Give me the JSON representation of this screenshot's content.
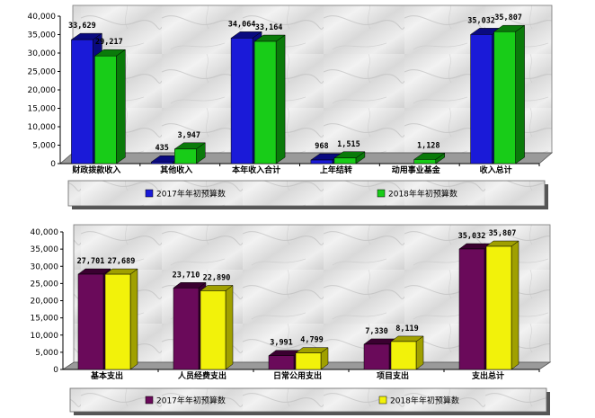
{
  "colors": {
    "blue": "#1a1ad8",
    "blue_dark": "#0a0a80",
    "green": "#18cc18",
    "green_dark": "#0a7a0a",
    "purple": "#6a0a5a",
    "purple_dark": "#3a0030",
    "yellow": "#f2f20a",
    "yellow_dark": "#a0a000"
  },
  "chart_data": [
    {
      "type": "bar",
      "title": "",
      "categories": [
        "财政拨款收入",
        "其他收入",
        "本年收入合计",
        "上年结转",
        "动用事业基金",
        "收入总计"
      ],
      "series": [
        {
          "name": "2017年年初预算数",
          "color": "blue",
          "values": [
            33629,
            435,
            34064,
            968,
            null,
            35032
          ],
          "labels": [
            "33,629",
            "435",
            "34,064",
            "968",
            "",
            "35,032"
          ]
        },
        {
          "name": "2018年年初预算数",
          "color": "green",
          "values": [
            29217,
            3947,
            33164,
            1515,
            1128,
            35807
          ],
          "labels": [
            "29,217",
            "3,947",
            "33,164",
            "1,515",
            "1,128",
            "35,807"
          ]
        }
      ],
      "ylim": [
        0,
        40000
      ],
      "yticks": [
        "0",
        "5,000",
        "10,000",
        "15,000",
        "20,000",
        "25,000",
        "30,000",
        "35,000",
        "40,000"
      ],
      "legend_position": "bottom",
      "grid": false
    },
    {
      "type": "bar",
      "title": "",
      "categories": [
        "基本支出",
        "人员经费支出",
        "日常公用支出",
        "项目支出",
        "支出总计"
      ],
      "series": [
        {
          "name": "2017年年初预算数",
          "color": "purple",
          "values": [
            27701,
            23710,
            3991,
            7330,
            35032
          ],
          "labels": [
            "27,701",
            "23,710",
            "3,991",
            "7,330",
            "35,032"
          ]
        },
        {
          "name": "2018年年初预算数",
          "color": "yellow",
          "values": [
            27689,
            22890,
            4799,
            8119,
            35807
          ],
          "labels": [
            "27,689",
            "22,890",
            "4,799",
            "8,119",
            "35,807"
          ]
        }
      ],
      "ylim": [
        0,
        40000
      ],
      "yticks": [
        "0",
        "5,000",
        "10,000",
        "15,000",
        "20,000",
        "25,000",
        "30,000",
        "35,000",
        "40,000"
      ],
      "legend_position": "bottom",
      "grid": false
    }
  ]
}
